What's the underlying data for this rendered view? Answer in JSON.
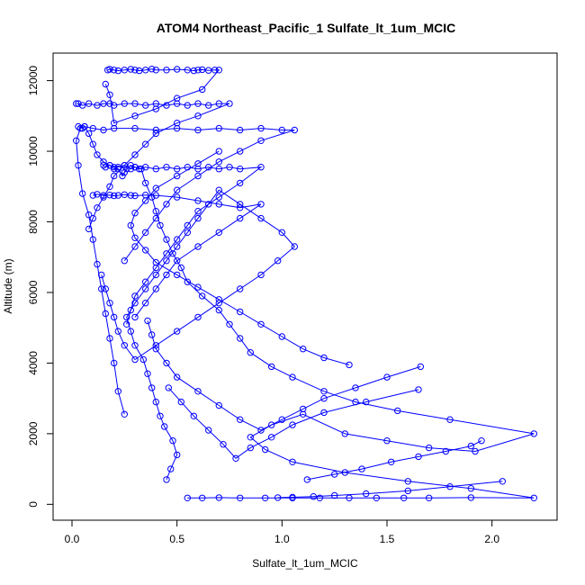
{
  "chart_data": {
    "type": "line",
    "title": "ATOM4 Northeast_Pacific_1 Sulfate_lt_1um_MCIC",
    "xlabel": "Sulfate_lt_1um_MCIC",
    "ylabel": "Altitude (m)",
    "xlim": [
      -0.09,
      2.31
    ],
    "ylim": [
      -450,
      12780
    ],
    "xticks": [
      0.0,
      0.5,
      1.0,
      1.5,
      2.0
    ],
    "xtick_labels": [
      "0.0",
      "0.5",
      "1.0",
      "1.5",
      "2.0"
    ],
    "yticks": [
      0,
      2000,
      4000,
      6000,
      8000,
      10000,
      12000
    ],
    "ytick_labels": [
      "0",
      "2000",
      "4000",
      "6000",
      "8000",
      "10000",
      "12000"
    ],
    "markers": "open-circle",
    "line_color": "#0000FF",
    "series": [
      {
        "x": [
          0.55,
          0.62,
          0.7,
          0.8,
          0.92,
          1.05,
          1.18,
          1.32,
          1.45,
          1.58,
          1.7,
          1.9,
          2.2,
          1.9,
          1.6,
          1.3,
          1.05,
          0.92,
          0.85,
          0.95,
          1.1,
          1.3,
          1.5,
          1.7,
          1.92,
          2.2,
          1.8,
          1.55,
          1.35,
          1.2,
          1.05,
          0.95,
          0.85,
          0.8,
          0.75,
          0.7,
          0.62,
          0.55,
          0.52,
          0.48,
          0.45,
          0.42,
          0.4,
          0.38,
          0.35,
          0.33,
          0.3,
          0.28,
          0.26,
          0.25,
          0.24,
          0.22,
          0.2,
          0.18,
          0.15,
          0.12,
          0.1,
          0.08,
          0.06,
          0.05,
          0.03
        ],
        "y": [
          180,
          180,
          190,
          180,
          180,
          180,
          180,
          180,
          180,
          180,
          180,
          190,
          180,
          450,
          650,
          900,
          1200,
          1550,
          1900,
          2250,
          2550,
          2000,
          1800,
          1600,
          1500,
          2000,
          2400,
          2650,
          2900,
          3200,
          3600,
          3900,
          4300,
          4700,
          5100,
          5500,
          5900,
          6300,
          6700,
          7100,
          7500,
          7900,
          8300,
          8700,
          9100,
          9500,
          9550,
          9600,
          9500,
          9400,
          9300,
          9500,
          9550,
          9600,
          9700,
          9900,
          10200,
          10500,
          10700,
          10650,
          10700
        ]
      },
      {
        "x": [
          0.45,
          0.47,
          0.5,
          0.48,
          0.44,
          0.42,
          0.4,
          0.38,
          0.36,
          0.34,
          0.3,
          0.28,
          0.26,
          0.3,
          0.35,
          0.4,
          0.45,
          0.5,
          0.55,
          0.6,
          0.65,
          0.7,
          0.8,
          0.9,
          1.0,
          1.06,
          0.98,
          0.9,
          0.8,
          0.7,
          0.6,
          0.5,
          0.4,
          0.3,
          0.25,
          0.22,
          0.2,
          0.18,
          0.16,
          0.14
        ],
        "y": [
          700,
          1000,
          1400,
          1800,
          2200,
          2500,
          2900,
          3300,
          3700,
          4100,
          4500,
          4900,
          5300,
          5700,
          6100,
          6500,
          6900,
          7300,
          7700,
          8100,
          8500,
          8900,
          8500,
          8100,
          7700,
          7300,
          6900,
          6500,
          6100,
          5700,
          5300,
          4900,
          4500,
          4100,
          4500,
          4900,
          5300,
          5700,
          6100,
          6500
        ]
      },
      {
        "x": [
          0.25,
          0.22,
          0.2,
          0.18,
          0.16,
          0.14,
          0.12,
          0.1,
          0.08,
          0.05,
          0.03,
          0.02,
          0.04,
          0.06,
          0.1,
          0.15,
          0.2,
          0.3,
          0.4,
          0.5,
          0.6,
          0.7,
          0.8,
          0.9,
          1.0,
          1.06,
          0.9,
          0.8,
          0.7,
          0.6,
          0.5,
          0.45,
          0.4,
          0.35,
          0.3,
          0.25
        ],
        "y": [
          2550,
          3200,
          4000,
          4700,
          5400,
          6100,
          6800,
          7500,
          8200,
          8800,
          9600,
          10300,
          10650,
          10700,
          10650,
          10600,
          10650,
          10650,
          10600,
          10650,
          10600,
          10650,
          10600,
          10650,
          10600,
          10600,
          10300,
          10000,
          9700,
          9300,
          8900,
          8500,
          8100,
          7700,
          7300,
          6900
        ]
      },
      {
        "x": [
          0.02,
          0.03,
          0.05,
          0.08,
          0.12,
          0.15,
          0.18,
          0.2,
          0.25,
          0.3,
          0.35,
          0.4,
          0.45,
          0.5,
          0.55,
          0.6,
          0.65,
          0.7,
          0.75,
          0.6,
          0.5,
          0.4,
          0.35,
          0.3,
          0.25,
          0.2,
          0.18,
          0.15,
          0.12,
          0.1,
          0.08
        ],
        "y": [
          11350,
          11350,
          11300,
          11350,
          11300,
          11350,
          11350,
          11300,
          11350,
          11350,
          11300,
          11350,
          11300,
          11350,
          11300,
          11350,
          11300,
          11350,
          11350,
          11000,
          10800,
          10500,
          10200,
          9900,
          9600,
          9300,
          9000,
          8700,
          8400,
          8100,
          7800
        ]
      },
      {
        "x": [
          0.17,
          0.18,
          0.2,
          0.22,
          0.25,
          0.28,
          0.3,
          0.32,
          0.35,
          0.38,
          0.4,
          0.45,
          0.5,
          0.55,
          0.58,
          0.6,
          0.62,
          0.65,
          0.68,
          0.7,
          0.62,
          0.5,
          0.4,
          0.3,
          0.2,
          0.18,
          0.16
        ],
        "y": [
          12300,
          12320,
          12300,
          12280,
          12300,
          12320,
          12300,
          12280,
          12300,
          12330,
          12300,
          12300,
          12320,
          12300,
          12280,
          12300,
          12310,
          12290,
          12300,
          12300,
          11750,
          11500,
          11200,
          11000,
          10800,
          11600,
          11900
        ]
      },
      {
        "x": [
          0.15,
          0.16,
          0.18,
          0.2,
          0.22,
          0.25,
          0.28,
          0.3,
          0.32,
          0.35,
          0.4,
          0.45,
          0.5,
          0.55,
          0.6,
          0.65,
          0.7,
          0.75,
          0.8,
          0.9,
          0.8,
          0.7,
          0.6,
          0.55,
          0.5,
          0.45,
          0.4,
          0.35,
          0.3,
          0.28,
          0.26
        ],
        "y": [
          9600,
          9550,
          9600,
          9500,
          9550,
          9600,
          9500,
          9550,
          9500,
          9550,
          9500,
          9550,
          9500,
          9550,
          9500,
          9550,
          9500,
          9550,
          9500,
          9550,
          9100,
          8700,
          8300,
          7900,
          7500,
          7100,
          6700,
          6300,
          5900,
          5500,
          5100
        ]
      },
      {
        "x": [
          0.1,
          0.12,
          0.15,
          0.18,
          0.2,
          0.22,
          0.25,
          0.28,
          0.3,
          0.35,
          0.4,
          0.5,
          0.6,
          0.7,
          0.8,
          0.9,
          0.8,
          0.7,
          0.6,
          0.5,
          0.45,
          0.4,
          0.35,
          0.3
        ],
        "y": [
          8750,
          8780,
          8750,
          8760,
          8740,
          8750,
          8770,
          8750,
          8740,
          8760,
          8750,
          8700,
          8600,
          8500,
          8400,
          8500,
          8100,
          7700,
          7300,
          6900,
          6500,
          6100,
          5700,
          5300
        ]
      },
      {
        "x": [
          1.32,
          1.2,
          1.1,
          1.0,
          0.9,
          0.8,
          0.7,
          0.6,
          0.5,
          0.4,
          0.35,
          0.3,
          0.28,
          0.3,
          0.35,
          0.4,
          0.5,
          0.6,
          0.7
        ],
        "y": [
          3950,
          4150,
          4400,
          4750,
          5100,
          5450,
          5800,
          6150,
          6500,
          6850,
          7200,
          7550,
          7900,
          8250,
          8600,
          8950,
          9300,
          9650,
          10000
        ]
      },
      {
        "x": [
          1.66,
          1.5,
          1.35,
          1.2,
          1.1,
          1.0,
          0.9,
          0.8,
          0.7,
          0.6,
          0.5,
          0.45,
          0.4,
          0.38,
          0.36
        ],
        "y": [
          3900,
          3600,
          3300,
          3000,
          2700,
          2400,
          2100,
          2400,
          2800,
          3200,
          3600,
          4000,
          4400,
          4800,
          5200
        ]
      },
      {
        "x": [
          1.65,
          1.4,
          1.2,
          1.05,
          0.95,
          0.85,
          0.78,
          0.72,
          0.65,
          0.58,
          0.52,
          0.46
        ],
        "y": [
          3250,
          2900,
          2600,
          2250,
          1900,
          1600,
          1300,
          1700,
          2100,
          2500,
          2900,
          3300
        ]
      },
      {
        "x": [
          2.05,
          1.8,
          1.6,
          1.4,
          1.25,
          1.15,
          1.05,
          0.98
        ],
        "y": [
          650,
          500,
          380,
          300,
          250,
          220,
          200,
          190
        ]
      },
      {
        "x": [
          1.12,
          1.25,
          1.38,
          1.52,
          1.65,
          1.78,
          1.9,
          1.95
        ],
        "y": [
          700,
          850,
          1000,
          1200,
          1350,
          1500,
          1650,
          1800
        ]
      }
    ]
  }
}
